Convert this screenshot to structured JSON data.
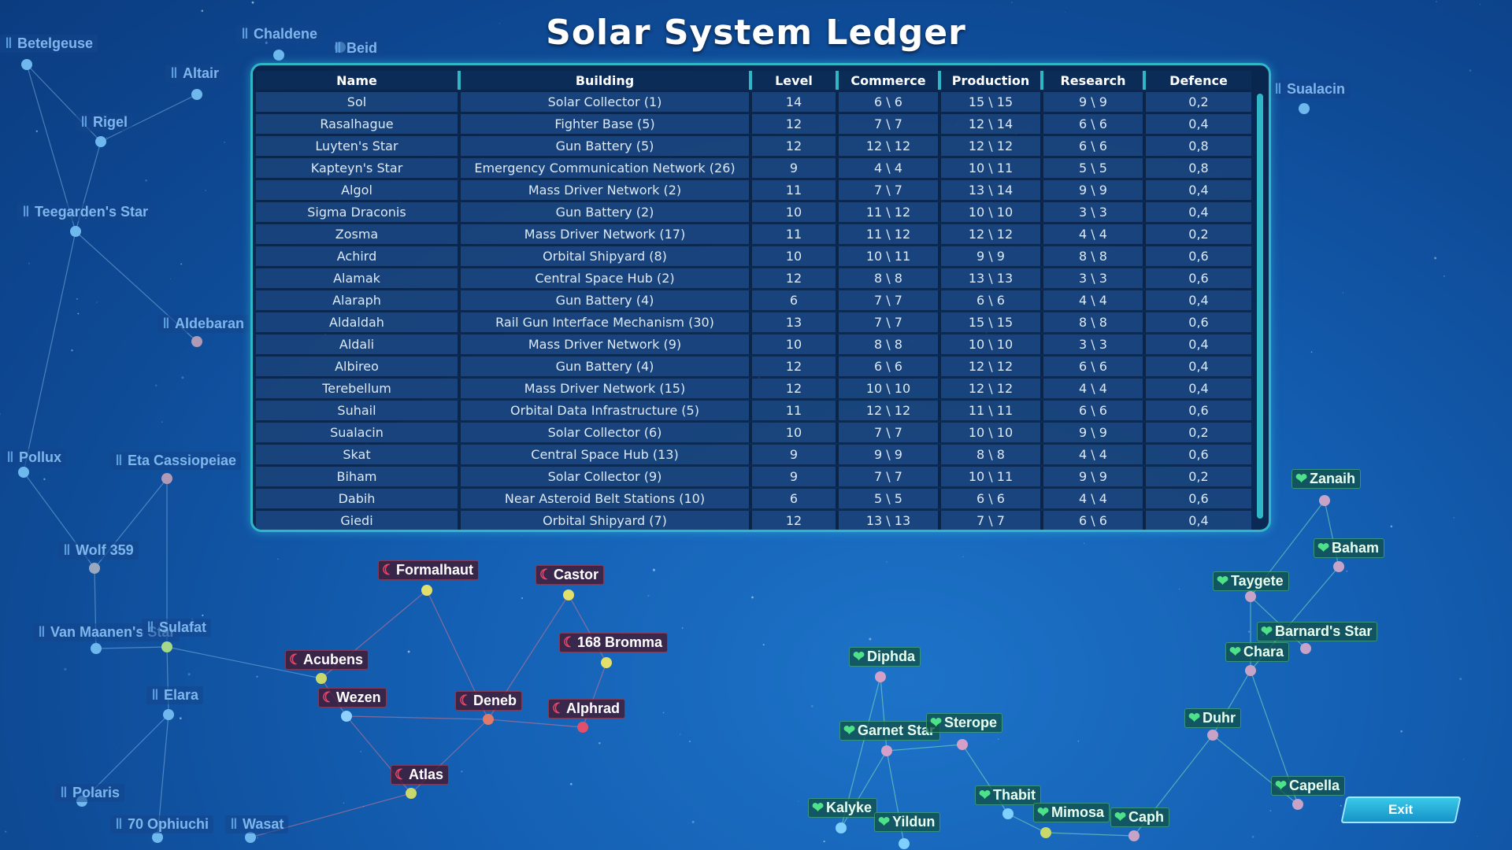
{
  "title": "Solar System Ledger",
  "exit_label": "Exit",
  "colors": {
    "panel_border": "#2fb7c8",
    "hostile": "#ff4060",
    "allied": "#4ee08a",
    "neutral": "#5c9ede"
  },
  "icons": {
    "hostile_faction": "crescent-icon",
    "allied_faction": "leaf-icon",
    "neutral_faction": "pillar-icon"
  },
  "ledger": {
    "columns": [
      "Name",
      "Building",
      "Level",
      "Commerce",
      "Production",
      "Research",
      "Defence"
    ],
    "rows": [
      [
        "Sol",
        "Solar Collector (1)",
        "14",
        "6 \\ 6",
        "15 \\ 15",
        "9 \\ 9",
        "0,2"
      ],
      [
        "Rasalhague",
        "Fighter Base (5)",
        "12",
        "7 \\ 7",
        "12 \\ 14",
        "6 \\ 6",
        "0,4"
      ],
      [
        "Luyten's Star",
        "Gun Battery (5)",
        "12",
        "12 \\ 12",
        "12 \\ 12",
        "6 \\ 6",
        "0,8"
      ],
      [
        "Kapteyn's Star",
        "Emergency Communication Network (26)",
        "9",
        "4 \\ 4",
        "10 \\ 11",
        "5 \\ 5",
        "0,8"
      ],
      [
        "Algol",
        "Mass Driver Network (2)",
        "11",
        "7 \\ 7",
        "13 \\ 14",
        "9 \\ 9",
        "0,4"
      ],
      [
        "Sigma Draconis",
        "Gun Battery (2)",
        "10",
        "11 \\ 12",
        "10 \\ 10",
        "3 \\ 3",
        "0,4"
      ],
      [
        "Zosma",
        "Mass Driver Network (17)",
        "11",
        "11 \\ 12",
        "12 \\ 12",
        "4 \\ 4",
        "0,2"
      ],
      [
        "Achird",
        "Orbital Shipyard (8)",
        "10",
        "10 \\ 11",
        "9 \\ 9",
        "8 \\ 8",
        "0,6"
      ],
      [
        "Alamak",
        "Central Space Hub (2)",
        "12",
        "8 \\ 8",
        "13 \\ 13",
        "3 \\ 3",
        "0,6"
      ],
      [
        "Alaraph",
        "Gun Battery (4)",
        "6",
        "7 \\ 7",
        "6 \\ 6",
        "4 \\ 4",
        "0,4"
      ],
      [
        "Aldaldah",
        "Rail Gun Interface Mechanism (30)",
        "13",
        "7 \\ 7",
        "15 \\ 15",
        "8 \\ 8",
        "0,6"
      ],
      [
        "Aldali",
        "Mass Driver Network (9)",
        "10",
        "8 \\ 8",
        "10 \\ 10",
        "3 \\ 3",
        "0,4"
      ],
      [
        "Albireo",
        "Gun Battery (4)",
        "12",
        "6 \\ 6",
        "12 \\ 12",
        "6 \\ 6",
        "0,4"
      ],
      [
        "Terebellum",
        "Mass Driver Network (15)",
        "12",
        "10 \\ 10",
        "12 \\ 12",
        "4 \\ 4",
        "0,4"
      ],
      [
        "Suhail",
        "Orbital Data Infrastructure (5)",
        "11",
        "12 \\ 12",
        "11 \\ 11",
        "6 \\ 6",
        "0,6"
      ],
      [
        "Sualacin",
        "Solar Collector (6)",
        "10",
        "7 \\ 7",
        "10 \\ 10",
        "9 \\ 9",
        "0,2"
      ],
      [
        "Skat",
        "Central Space Hub (13)",
        "9",
        "9 \\ 9",
        "8 \\ 8",
        "4 \\ 4",
        "0,6"
      ],
      [
        "Biham",
        "Solar Collector (9)",
        "9",
        "7 \\ 7",
        "10 \\ 11",
        "9 \\ 9",
        "0,2"
      ],
      [
        "Dabih",
        "Near Asteroid Belt Stations (10)",
        "6",
        "5 \\ 5",
        "6 \\ 6",
        "4 \\ 4",
        "0,6"
      ],
      [
        "Giedi",
        "Orbital Shipyard (7)",
        "12",
        "13 \\ 13",
        "7 \\ 7",
        "6 \\ 6",
        "0,4"
      ]
    ]
  },
  "stars": [
    {
      "name": "Betelgeuse",
      "faction": "neutral"
    },
    {
      "name": "Chaldene",
      "faction": "neutral"
    },
    {
      "name": "Beid",
      "faction": "neutral"
    },
    {
      "name": "Altair",
      "faction": "neutral"
    },
    {
      "name": "Rigel",
      "faction": "neutral"
    },
    {
      "name": "Teegarden's Star",
      "faction": "neutral"
    },
    {
      "name": "Aldebaran",
      "faction": "neutral"
    },
    {
      "name": "Pollux",
      "faction": "neutral"
    },
    {
      "name": "Eta Cassiopeiae",
      "faction": "neutral"
    },
    {
      "name": "Wolf 359",
      "faction": "neutral"
    },
    {
      "name": "Van Maanen's Star",
      "faction": "neutral"
    },
    {
      "name": "Sulafat",
      "faction": "neutral"
    },
    {
      "name": "Elara",
      "faction": "neutral"
    },
    {
      "name": "Polaris",
      "faction": "neutral"
    },
    {
      "name": "70 Ophiuchi",
      "faction": "neutral"
    },
    {
      "name": "Wasat",
      "faction": "neutral"
    },
    {
      "name": "Sualacin",
      "faction": "neutral"
    },
    {
      "name": "Formalhaut",
      "faction": "hostile"
    },
    {
      "name": "Castor",
      "faction": "hostile"
    },
    {
      "name": "168 Bromma",
      "faction": "hostile"
    },
    {
      "name": "Acubens",
      "faction": "hostile"
    },
    {
      "name": "Wezen",
      "faction": "hostile"
    },
    {
      "name": "Deneb",
      "faction": "hostile"
    },
    {
      "name": "Alphrad",
      "faction": "hostile"
    },
    {
      "name": "Atlas",
      "faction": "hostile"
    },
    {
      "name": "Diphda",
      "faction": "allied"
    },
    {
      "name": "Garnet Star",
      "faction": "allied"
    },
    {
      "name": "Sterope",
      "faction": "allied"
    },
    {
      "name": "Thabit",
      "faction": "allied"
    },
    {
      "name": "Kalyke",
      "faction": "allied"
    },
    {
      "name": "Yildun",
      "faction": "allied"
    },
    {
      "name": "Mimosa",
      "faction": "allied"
    },
    {
      "name": "Caph",
      "faction": "allied"
    },
    {
      "name": "Zanaih",
      "faction": "allied"
    },
    {
      "name": "Baham",
      "faction": "allied"
    },
    {
      "name": "Taygete",
      "faction": "allied"
    },
    {
      "name": "Barnard's Star",
      "faction": "allied"
    },
    {
      "name": "Chara",
      "faction": "allied"
    },
    {
      "name": "Duhr",
      "faction": "allied"
    },
    {
      "name": "Capella",
      "faction": "allied"
    }
  ]
}
